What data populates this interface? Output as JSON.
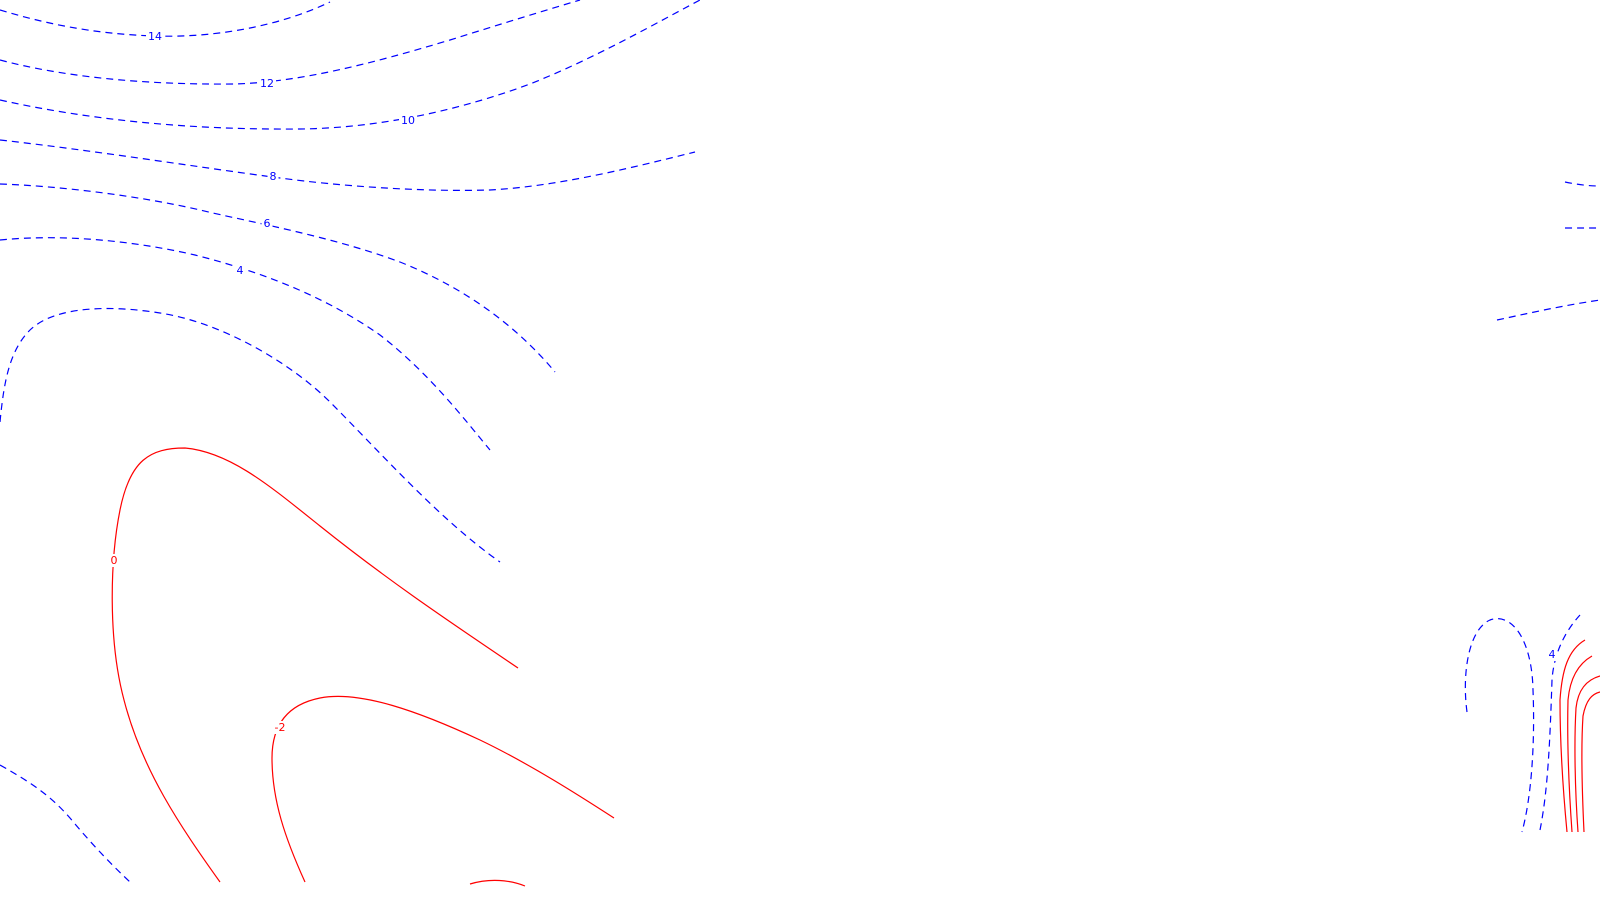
{
  "chart_data": {
    "type": "contour",
    "title": "",
    "xlabel": "",
    "ylabel": "",
    "grid": false,
    "legend": "none",
    "colors": {
      "positive": "#0000ff",
      "negative_or_zero": "#ff0000"
    },
    "line_styles": {
      "positive": "dashed",
      "negative_or_zero": "solid"
    },
    "levels": [
      {
        "value": 14,
        "label": "14"
      },
      {
        "value": 12,
        "label": "12"
      },
      {
        "value": 10,
        "label": "10"
      },
      {
        "value": 8,
        "label": "8"
      },
      {
        "value": 6,
        "label": "6"
      },
      {
        "value": 4,
        "label": "4"
      },
      {
        "value": 2,
        "label": ""
      },
      {
        "value": 0,
        "label": "0"
      },
      {
        "value": -2,
        "label": "-2"
      },
      {
        "value": -4,
        "label": ""
      }
    ],
    "extra_labels": [
      {
        "value": 4,
        "label": "4"
      }
    ]
  }
}
